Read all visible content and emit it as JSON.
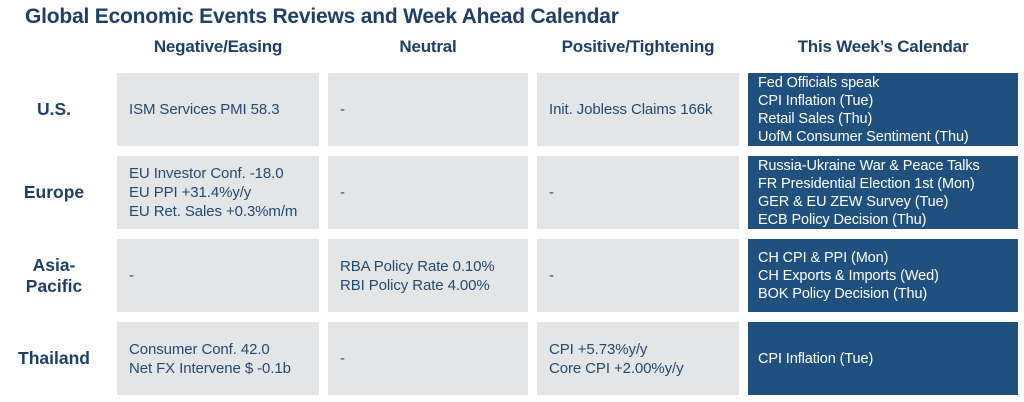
{
  "title": "Global Economic Events Reviews and Week Ahead Calendar",
  "columns": {
    "negative": "Negative/Easing",
    "neutral": "Neutral",
    "positive": "Positive/Tightening",
    "calendar": "This Week’s Calendar"
  },
  "rows": [
    {
      "region": "U.S.",
      "negative": "ISM Services PMI 58.3",
      "neutral": "-",
      "positive": "Init. Jobless Claims 166k",
      "calendar": "Fed Officials speak\nCPI Inflation (Tue)\nRetail Sales (Thu)\nUofM Consumer Sentiment (Thu)"
    },
    {
      "region": "Europe",
      "negative": "EU Investor Conf. -18.0\nEU PPI +31.4%y/y\nEU Ret. Sales +0.3%m/m",
      "neutral": "-",
      "positive": "-",
      "calendar": "Russia-Ukraine War & Peace Talks\nFR Presidential Election 1st (Mon)\nGER & EU ZEW Survey (Tue)\nECB Policy Decision (Thu)"
    },
    {
      "region": "Asia-\nPacific",
      "negative": "-",
      "neutral": "RBA Policy Rate 0.10%\nRBI Policy Rate 4.00%",
      "positive": "-",
      "calendar": "CH CPI & PPI (Mon)\nCH Exports & Imports (Wed)\nBOK Policy Decision (Thu)"
    },
    {
      "region": "Thailand",
      "negative": "Consumer Conf. 42.0\nNet FX Intervene $ -0.1b",
      "neutral": "-",
      "positive": "CPI +5.73%y/y\nCore CPI +2.00%y/y",
      "calendar": "CPI Inflation (Tue)"
    }
  ],
  "colors": {
    "navy_text": "#1f3f66",
    "cell_gray": "#e4e5e6",
    "calendar_blue": "#20507e",
    "calendar_text": "#ffffff"
  }
}
